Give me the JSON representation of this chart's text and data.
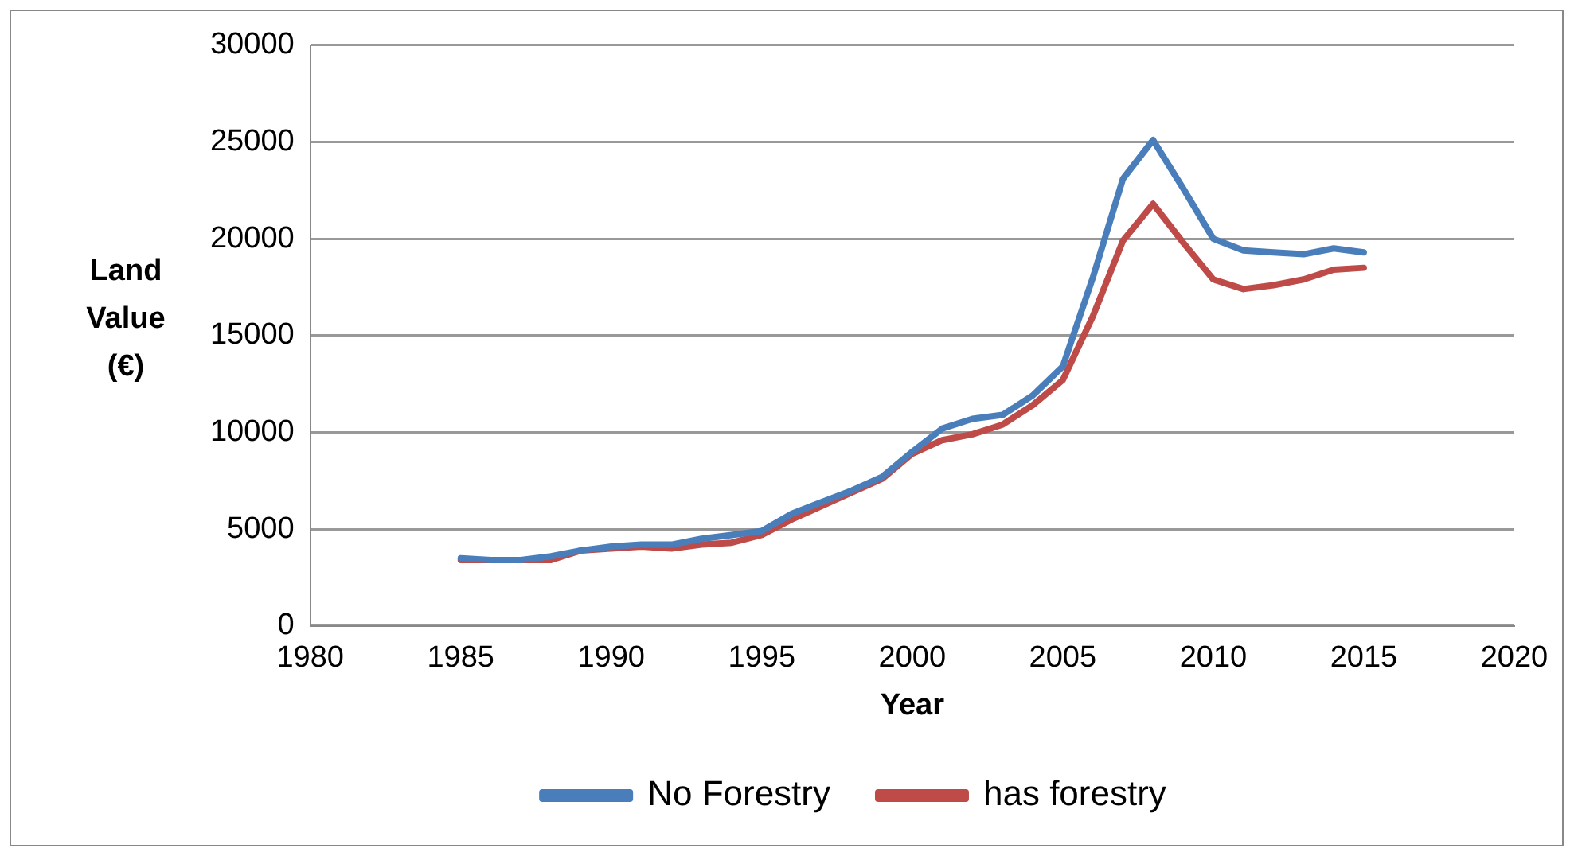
{
  "chart_data": {
    "type": "line",
    "xlabel": "Year",
    "ylabel": "Land Value (€)",
    "x": [
      1985,
      1986,
      1987,
      1988,
      1989,
      1990,
      1991,
      1992,
      1993,
      1994,
      1995,
      1996,
      1997,
      1998,
      1999,
      2000,
      2001,
      2002,
      2003,
      2004,
      2005,
      2006,
      2007,
      2008,
      2009,
      2010,
      2011,
      2012,
      2013,
      2014,
      2015
    ],
    "series": [
      {
        "name": "No Forestry",
        "color": "#4a7ebb",
        "values": [
          3500,
          3400,
          3400,
          3600,
          3900,
          4100,
          4200,
          4200,
          4500,
          4700,
          4900,
          5800,
          6400,
          7000,
          7700,
          9000,
          10200,
          10700,
          10900,
          11900,
          13400,
          18000,
          23100,
          25100,
          22600,
          20000,
          19400,
          19300,
          19200,
          19500,
          19300
        ]
      },
      {
        "name": "has forestry",
        "color": "#be4b48",
        "values": [
          3400,
          3400,
          3400,
          3400,
          3900,
          4000,
          4100,
          4000,
          4200,
          4300,
          4700,
          5500,
          6200,
          6900,
          7600,
          8900,
          9600,
          9900,
          10400,
          11400,
          12700,
          16000,
          19900,
          21800,
          19800,
          17900,
          17400,
          17600,
          17900,
          18400,
          18500
        ]
      }
    ],
    "xlim": [
      1980,
      2020
    ],
    "xticks": [
      1980,
      1985,
      1990,
      1995,
      2000,
      2005,
      2010,
      2015,
      2020
    ],
    "ylim": [
      0,
      30000
    ],
    "yticks": [
      0,
      5000,
      10000,
      15000,
      20000,
      25000,
      30000
    ],
    "grid": "y",
    "legend": "bottom",
    "marker": "none",
    "line_style": "solid"
  }
}
